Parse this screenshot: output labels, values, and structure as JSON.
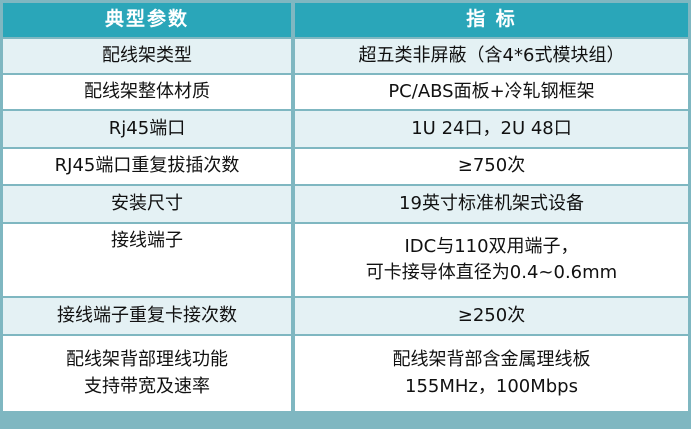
{
  "header": {
    "param": "典型参数",
    "spec": "指  标"
  },
  "rows": [
    {
      "param": "配线架类型",
      "spec": [
        "超五类非屏蔽（含4*6式模块组）"
      ]
    },
    {
      "param": "配线架整体材质",
      "spec": [
        "PC/ABS面板+冷轧钢框架"
      ]
    },
    {
      "param": "Rj45端口",
      "spec": [
        "1U 24口，2U 48口"
      ]
    },
    {
      "param": "RJ45端口重复拔插次数",
      "spec": [
        "≥750次"
      ]
    },
    {
      "param": "安装尺寸",
      "spec": [
        "19英寸标准机架式设备"
      ]
    },
    {
      "param": "接线端子",
      "spec": [
        "IDC与110双用端子，",
        "可卡接导体直径为0.4~0.6mm"
      ]
    },
    {
      "param": "接线端子重复卡接次数",
      "spec": [
        "≥250次"
      ]
    },
    {
      "param": [
        "配线架背部理线功能",
        "支持带宽及速率"
      ],
      "spec": [
        "配线架背部含金属理线板",
        "155MHz，100Mbps"
      ]
    }
  ],
  "colors": {
    "header_bg": "#2aa6b9",
    "border": "#7fb7c1",
    "row_tint": "#e4f1f4"
  }
}
